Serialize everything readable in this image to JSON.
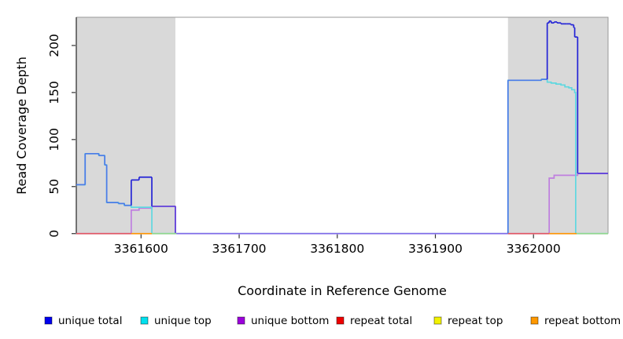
{
  "figure": {
    "background": "#ffffff"
  },
  "chart_data": {
    "type": "line",
    "subtype": "step-coverage-plot",
    "title": "",
    "xlabel": "Coordinate in Reference Genome",
    "ylabel": "Read Coverage Depth",
    "xlim": [
      3361534,
      3362076
    ],
    "ylim": [
      0,
      230
    ],
    "xticks": [
      3361600,
      3361700,
      3361800,
      3361900,
      3362000
    ],
    "yticks": [
      0,
      50,
      100,
      150,
      200
    ],
    "grid": false,
    "legend_position": "bottom",
    "highlighted_regions": [
      {
        "from": 3361534,
        "to": 3361635,
        "fill": "#d9d9d9"
      },
      {
        "from": 3361974,
        "to": 3362076,
        "fill": "#d9d9d9"
      }
    ],
    "series": [
      {
        "name": "unique total",
        "key": "unique_total",
        "legend_color": "#0000ee",
        "points": [
          [
            3361534,
            52
          ],
          [
            3361543,
            85
          ],
          [
            3361557,
            83
          ],
          [
            3361563,
            73
          ],
          [
            3361565,
            33
          ],
          [
            3361577,
            32
          ],
          [
            3361583,
            30
          ],
          [
            3361590,
            57
          ],
          [
            3361598,
            60
          ],
          [
            3361611,
            29
          ],
          [
            3361635,
            0
          ],
          [
            3361974,
            163
          ],
          [
            3362008,
            164
          ],
          [
            3362014,
            224
          ],
          [
            3362016,
            226
          ],
          [
            3362018,
            224
          ],
          [
            3362021,
            225
          ],
          [
            3362024,
            224
          ],
          [
            3362028,
            223
          ],
          [
            3362034,
            223
          ],
          [
            3362038,
            222
          ],
          [
            3362041,
            219
          ],
          [
            3362042,
            209
          ],
          [
            3362045,
            64
          ]
        ]
      },
      {
        "name": "unique top",
        "key": "unique_top",
        "legend_color": "#00e0ee",
        "points": [
          [
            3361534,
            52
          ],
          [
            3361543,
            85
          ],
          [
            3361557,
            83
          ],
          [
            3361563,
            73
          ],
          [
            3361565,
            33
          ],
          [
            3361577,
            32
          ],
          [
            3361583,
            30
          ],
          [
            3361590,
            28
          ],
          [
            3361611,
            0
          ],
          [
            3361974,
            163
          ],
          [
            3362008,
            164
          ],
          [
            3362014,
            161
          ],
          [
            3362018,
            160
          ],
          [
            3362023,
            159
          ],
          [
            3362028,
            158
          ],
          [
            3362032,
            156
          ],
          [
            3362036,
            155
          ],
          [
            3362039,
            153
          ],
          [
            3362042,
            150
          ],
          [
            3362043,
            0
          ]
        ]
      },
      {
        "name": "unique bottom",
        "key": "unique_bottom",
        "legend_color": "#9c00dc",
        "points": [
          [
            3361534,
            0
          ],
          [
            3361590,
            25
          ],
          [
            3361598,
            27
          ],
          [
            3361611,
            29
          ],
          [
            3361635,
            0
          ],
          [
            3362016,
            59
          ],
          [
            3362021,
            62
          ],
          [
            3362045,
            64
          ]
        ]
      },
      {
        "name": "repeat total",
        "key": "repeat_total",
        "legend_color": "#ee0000",
        "points": [
          [
            3361534,
            0
          ]
        ]
      },
      {
        "name": "repeat top",
        "key": "repeat_top",
        "legend_color": "#f2f200",
        "points": [
          [
            3361534,
            0
          ]
        ]
      },
      {
        "name": "repeat bottom",
        "key": "repeat_bottom",
        "legend_color": "#ff9800",
        "points": [
          [
            3361534,
            0
          ]
        ]
      }
    ],
    "baseline_segments": [
      {
        "from": 3361534,
        "to": 3361590,
        "color": "red"
      },
      {
        "from": 3361590,
        "to": 3361611,
        "color": "orange"
      },
      {
        "from": 3361611,
        "to": 3361636,
        "color": "green"
      },
      {
        "from": 3361974,
        "to": 3362016,
        "color": "red"
      },
      {
        "from": 3362016,
        "to": 3362044,
        "color": "orange"
      },
      {
        "from": 3362044,
        "to": 3362076,
        "color": "green"
      }
    ],
    "line_colors": {
      "total_alone": "#2424d6",
      "total_eq_top": "#4b7be8",
      "total_eq_bottom": "#5b3fd9",
      "total_all_zero": "#7d68e8",
      "top": "#5fd8e0",
      "bottom": "#bf7fdf",
      "red": "#e25563",
      "orange": "#ff9500",
      "green": "#8ed88e"
    },
    "axis_colors": {
      "axis": "#333333",
      "box": "#999999",
      "panel": "#d9d9d9"
    }
  },
  "legend": {
    "items": [
      {
        "label": "unique total",
        "color": "#0000ee"
      },
      {
        "label": "unique top",
        "color": "#00e0ee"
      },
      {
        "label": "unique bottom",
        "color": "#9c00dc"
      },
      {
        "label": "repeat total",
        "color": "#ee0000"
      },
      {
        "label": "repeat top",
        "color": "#f2f200"
      },
      {
        "label": "repeat bottom",
        "color": "#ff9800"
      }
    ]
  }
}
